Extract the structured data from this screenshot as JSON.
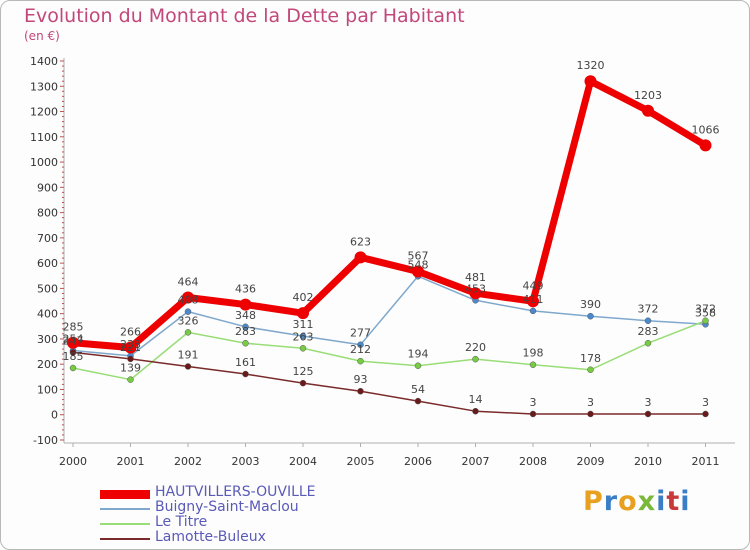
{
  "header": {
    "title": "Evolution du Montant de la Dette par Habitant",
    "unit": "(en €)"
  },
  "logo": {
    "text": "Proxiti",
    "colors": [
      "#e8a020",
      "#3a7ec8",
      "#e8a020",
      "#7ab83a",
      "#3a7ec8",
      "#c83a3a",
      "#3a7ec8"
    ]
  },
  "chart_data": {
    "type": "line",
    "x": [
      "2000",
      "2001",
      "2002",
      "2003",
      "2004",
      "2005",
      "2006",
      "2007",
      "2008",
      "2009",
      "2010",
      "2011"
    ],
    "ylim": [
      -100,
      1400
    ],
    "yticks": [
      -100,
      0,
      100,
      200,
      300,
      400,
      500,
      600,
      700,
      800,
      900,
      1000,
      1100,
      1200,
      1300,
      1400
    ],
    "grid": false,
    "legend": "bottom-left",
    "series": [
      {
        "name": "HAUTVILLERS-OUVILLE",
        "color": "#ee0000",
        "width": 7,
        "values": [
          285,
          266,
          464,
          436,
          402,
          623,
          567,
          481,
          449,
          1320,
          1203,
          1066
        ]
      },
      {
        "name": "Buigny-Saint-Maclou",
        "color": "#7fa8cc",
        "width": 1.5,
        "values": [
          254,
          233,
          408,
          348,
          311,
          277,
          548,
          453,
          411,
          390,
          372,
          358
        ]
      },
      {
        "name": "Le Titre",
        "color": "#99dd77",
        "width": 1.5,
        "values": [
          185,
          139,
          326,
          283,
          263,
          212,
          194,
          220,
          198,
          178,
          283,
          372
        ]
      },
      {
        "name": "Lamotte-Buleux",
        "color": "#7a2a2a",
        "width": 1.5,
        "values": [
          247,
          221,
          191,
          161,
          125,
          93,
          54,
          14,
          3,
          3,
          3,
          3
        ]
      }
    ],
    "marker_colors": [
      "#ee0000",
      "#4a8acc",
      "#77cc44",
      "#6a1a1a"
    ]
  }
}
